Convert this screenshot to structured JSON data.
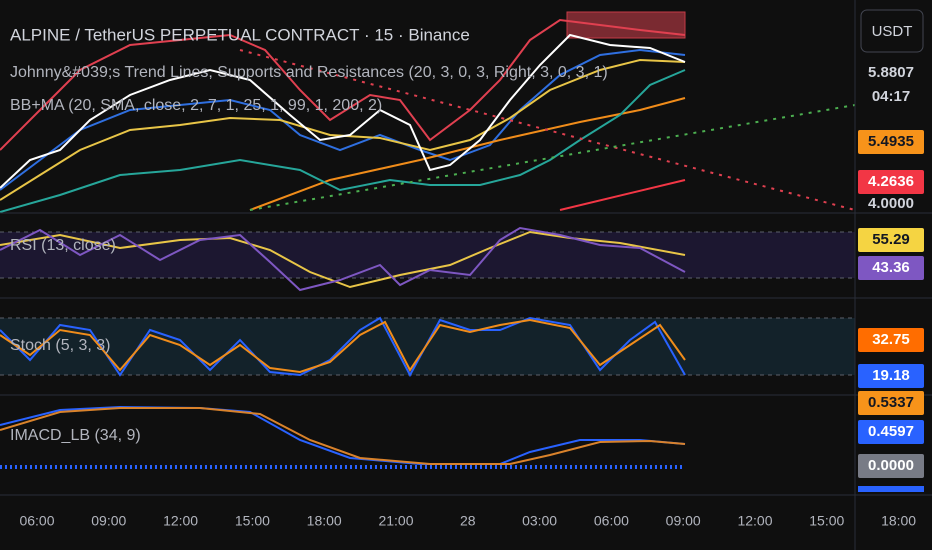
{
  "header": {
    "title": "ALPINE / TetherUS PERPETUAL CONTRACT · 15 · Binance",
    "indicators": [
      "Johnny&#039;s Trend Lines, Supports and Resistances (20, 3, 0, 3, Right, 3, 0, 3, 1)",
      "BB+MA (20, SMA, close, 2, 7, 1, 25, 1, 99, 1, 200, 2)"
    ]
  },
  "currency_button": "USDT",
  "panes": [
    {
      "price_labels": [
        "5.8807",
        "04:17",
        "5.4935",
        "4.2636",
        "4.0000"
      ]
    },
    {
      "label": "RSI (13, close)",
      "price_labels": [
        "55.29",
        "43.36"
      ]
    },
    {
      "label": "Stoch (5, 3, 3)",
      "price_labels": [
        "32.75",
        "19.18"
      ]
    },
    {
      "label": "IMACD_LB (34, 9)",
      "price_labels": [
        "0.5337",
        "0.4597",
        "0.0000"
      ]
    }
  ],
  "time_axis": [
    "06:00",
    "09:00",
    "12:00",
    "15:00",
    "18:00",
    "21:00",
    "28",
    "03:00",
    "06:00",
    "09:00",
    "12:00",
    "15:00",
    "18:00"
  ]
}
